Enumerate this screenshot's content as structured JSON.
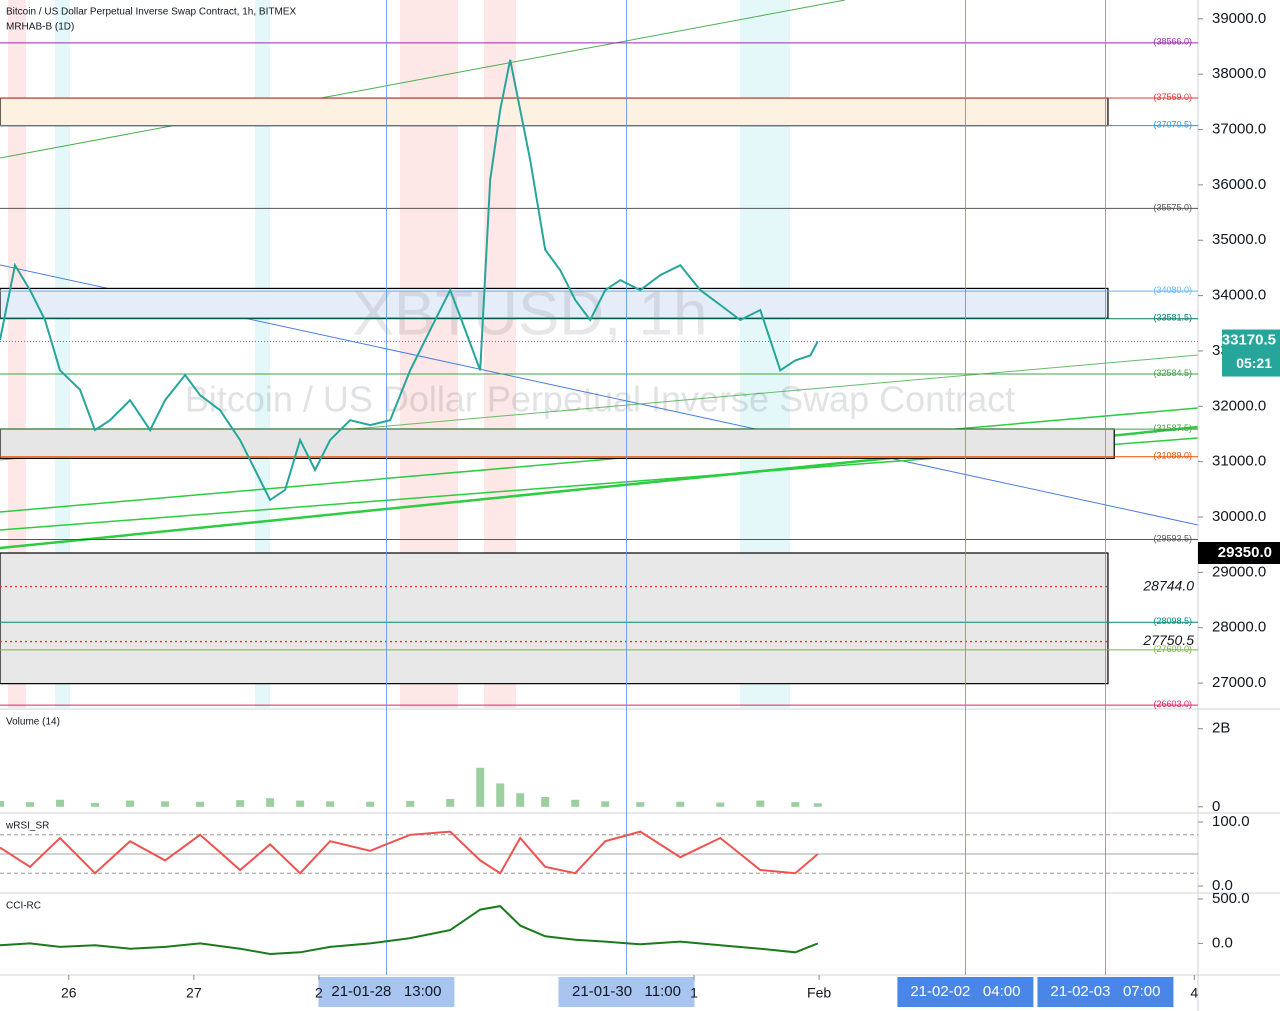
{
  "chart_data": [
    {
      "type": "line",
      "title": "Bitcoin / US Dollar Perpetual Inverse Swap Contract, 1h, BITMEX",
      "subtitle": "MRHAB-B (1D)",
      "watermark": "XBTUSD, 1h",
      "watermark_subtitle": "Bitcoin / US Dollar Perpetual Inverse Swap Contract",
      "color": "#26a69a",
      "x": [
        25.45,
        25.57,
        25.69,
        25.81,
        25.93,
        26.09,
        26.21,
        26.33,
        26.49,
        26.65,
        26.77,
        26.93,
        27.05,
        27.21,
        27.37,
        27.49,
        27.61,
        27.73,
        27.85,
        27.97,
        28.09,
        28.25,
        28.41,
        28.57,
        28.73,
        28.89,
        29.05,
        29.17,
        29.29,
        29.37,
        29.45,
        29.53,
        29.61,
        29.69,
        29.81,
        29.93,
        30.05,
        30.17,
        30.29,
        30.41,
        30.57,
        30.73,
        30.89,
        31.05,
        31.21,
        31.37,
        31.53,
        31.69,
        31.81,
        31.93,
        31.99
      ],
      "values": [
        33200,
        34550,
        34100,
        33560,
        32650,
        32300,
        31570,
        31750,
        32110,
        31570,
        32110,
        32565,
        32200,
        31930,
        31390,
        30850,
        30310,
        30490,
        31390,
        30850,
        31390,
        31750,
        31660,
        31750,
        32650,
        33380,
        34100,
        33380,
        32650,
        36090,
        37355,
        38260,
        37355,
        36450,
        34830,
        34460,
        33920,
        33560,
        34100,
        34280,
        34100,
        34370,
        34550,
        34100,
        33830,
        33560,
        33740,
        32650,
        32830,
        32920,
        33170.5
      ],
      "xlim": [
        25.45,
        35.03
      ],
      "xticks": [
        {
          "value": 26,
          "label": "26"
        },
        {
          "value": 27,
          "label": "27"
        },
        {
          "value": 28,
          "label": "2"
        },
        {
          "value": 31,
          "label": "1"
        },
        {
          "value": 32,
          "label": "Feb"
        },
        {
          "value": 35,
          "label": "4"
        }
      ],
      "ylim": [
        26550,
        39340
      ],
      "yticks": [
        {
          "value": 39000,
          "label": "39000.0"
        },
        {
          "value": 38000,
          "label": "38000.0"
        },
        {
          "value": 37000,
          "label": "37000.0"
        },
        {
          "value": 36000,
          "label": "36000.0"
        },
        {
          "value": 35000,
          "label": "35000.0"
        },
        {
          "value": 34000,
          "label": "34000.0"
        },
        {
          "value": 33000,
          "label": "33000.0"
        },
        {
          "value": 32000,
          "label": "32000.0"
        },
        {
          "value": 31000,
          "label": "31000.0"
        },
        {
          "value": 30000,
          "label": "30000.0"
        },
        {
          "value": 29000,
          "label": "29000.0"
        },
        {
          "value": 28000,
          "label": "28000.0"
        },
        {
          "value": 27000,
          "label": "27000.0"
        }
      ],
      "levels": [
        {
          "value": 38566,
          "label": "(38566.0)",
          "color": "#9c27b0"
        },
        {
          "value": 37569,
          "label": "(37569.0)",
          "color": "#e53935"
        },
        {
          "value": 37070.5,
          "label": "(37070.5)",
          "color": "#2196f3"
        },
        {
          "value": 35575,
          "label": "(35575.0)",
          "color": "#555555"
        },
        {
          "value": 34080,
          "label": "(34080.0)",
          "color": "#64b5f6"
        },
        {
          "value": 33581.5,
          "label": "(33581.5)",
          "color": "#00796b"
        },
        {
          "value": 32584.5,
          "label": "(32584.5)",
          "color": "#43a047"
        },
        {
          "value": 31587.5,
          "label": "(31587.5)",
          "color": "#43a047"
        },
        {
          "value": 31089,
          "label": "(31089.0)",
          "color": "#e65100"
        },
        {
          "value": 29593.5,
          "label": "(29593.5)",
          "color": "#555555"
        },
        {
          "value": 28098.5,
          "label": "(28098.5)",
          "color": "#00897b"
        },
        {
          "value": 27600,
          "label": "(27600.0)",
          "color": "#7cb342"
        },
        {
          "value": 26603,
          "label": "(26603.0)",
          "color": "#e91e63"
        }
      ],
      "alerts": [
        {
          "value": 28744,
          "label": "28744.0"
        },
        {
          "value": 27750.5,
          "label": "27750.5"
        }
      ],
      "boxes": [
        {
          "top": 37569,
          "bottom": 37070.5,
          "right": 34.31,
          "fill": "#fdf1e1"
        },
        {
          "top": 34130,
          "bottom": 33590,
          "right": 34.31,
          "fill": "#e4edf8"
        },
        {
          "top": 31590,
          "bottom": 31060,
          "right": 34.36,
          "fill": "#e6e6e6"
        },
        {
          "top": 29350,
          "bottom": 26990,
          "right": 34.31,
          "fill": "#e8e8e8"
        }
      ],
      "last_price": 33170.5,
      "countdown": "05:21",
      "marked_price": {
        "value": 29350,
        "label": "29350.0"
      },
      "markers": [
        {
          "value": 28.54,
          "label": "21-01-28   13:00",
          "color": "#a8c5f0",
          "text_color": "#131722"
        },
        {
          "value": 30.46,
          "label": "21-01-30   11:00",
          "color": "#a8c5f0",
          "text_color": "#131722"
        },
        {
          "value": 33.17,
          "label": "21-02-02   04:00",
          "color": "#4a86e8",
          "text_color": "#ffffff"
        },
        {
          "value": 34.29,
          "label": "21-02-03   07:00",
          "color": "#4a86e8",
          "text_color": "#ffffff"
        }
      ]
    },
    {
      "type": "bar",
      "title": "Volume (14)",
      "color": "#9ccfa0",
      "x": [
        25.45,
        25.69,
        25.93,
        26.21,
        26.49,
        26.77,
        27.05,
        27.37,
        27.61,
        27.85,
        28.09,
        28.41,
        28.73,
        29.05,
        29.29,
        29.45,
        29.61,
        29.81,
        30.05,
        30.29,
        30.57,
        30.89,
        31.21,
        31.53,
        31.81,
        31.99
      ],
      "values": [
        150000000,
        120000000,
        180000000,
        100000000,
        160000000,
        140000000,
        130000000,
        170000000,
        220000000,
        160000000,
        140000000,
        130000000,
        150000000,
        200000000,
        1000000000,
        600000000,
        350000000,
        250000000,
        180000000,
        140000000,
        120000000,
        130000000,
        110000000,
        160000000,
        120000000,
        90000000
      ],
      "ylim": [
        -133000000,
        2480000000
      ],
      "yticks": [
        {
          "value": 2000000000,
          "label": "2B"
        },
        0
      ]
    },
    {
      "type": "line",
      "title": "wRSI_SR",
      "color": "#ef5350",
      "x": [
        25.45,
        25.69,
        25.93,
        26.21,
        26.49,
        26.77,
        27.05,
        27.37,
        27.61,
        27.85,
        28.09,
        28.41,
        28.73,
        29.05,
        29.29,
        29.45,
        29.61,
        29.81,
        30.05,
        30.29,
        30.57,
        30.89,
        31.21,
        31.53,
        31.81,
        31.99
      ],
      "values": [
        60,
        30,
        75,
        20,
        70,
        40,
        80,
        25,
        65,
        20,
        70,
        55,
        80,
        85,
        40,
        20,
        75,
        30,
        20,
        70,
        85,
        45,
        75,
        25,
        20,
        50
      ],
      "levels": [
        80,
        50,
        20
      ],
      "ylim": [
        -9.4,
        112.5
      ],
      "yticks": [
        {
          "value": 100,
          "label": "100.0"
        },
        {
          "value": 0,
          "label": "0.0"
        }
      ]
    },
    {
      "type": "line",
      "title": "CCI-RC",
      "color": "#1b7a1b",
      "x": [
        25.45,
        25.69,
        25.93,
        26.21,
        26.49,
        26.77,
        27.05,
        27.37,
        27.61,
        27.85,
        28.09,
        28.41,
        28.73,
        29.05,
        29.29,
        29.45,
        29.61,
        29.81,
        30.05,
        30.29,
        30.57,
        30.89,
        31.21,
        31.53,
        31.81,
        31.99
      ],
      "values": [
        -20,
        0,
        -40,
        -20,
        -60,
        -40,
        0,
        -60,
        -120,
        -100,
        -40,
        0,
        60,
        150,
        380,
        420,
        200,
        80,
        40,
        20,
        -10,
        20,
        -20,
        -60,
        -100,
        0
      ],
      "ylim": [
        -356,
        556
      ],
      "yticks": [
        {
          "value": 500,
          "label": "500.0"
        },
        {
          "value": 0,
          "label": "0.0"
        }
      ]
    }
  ]
}
